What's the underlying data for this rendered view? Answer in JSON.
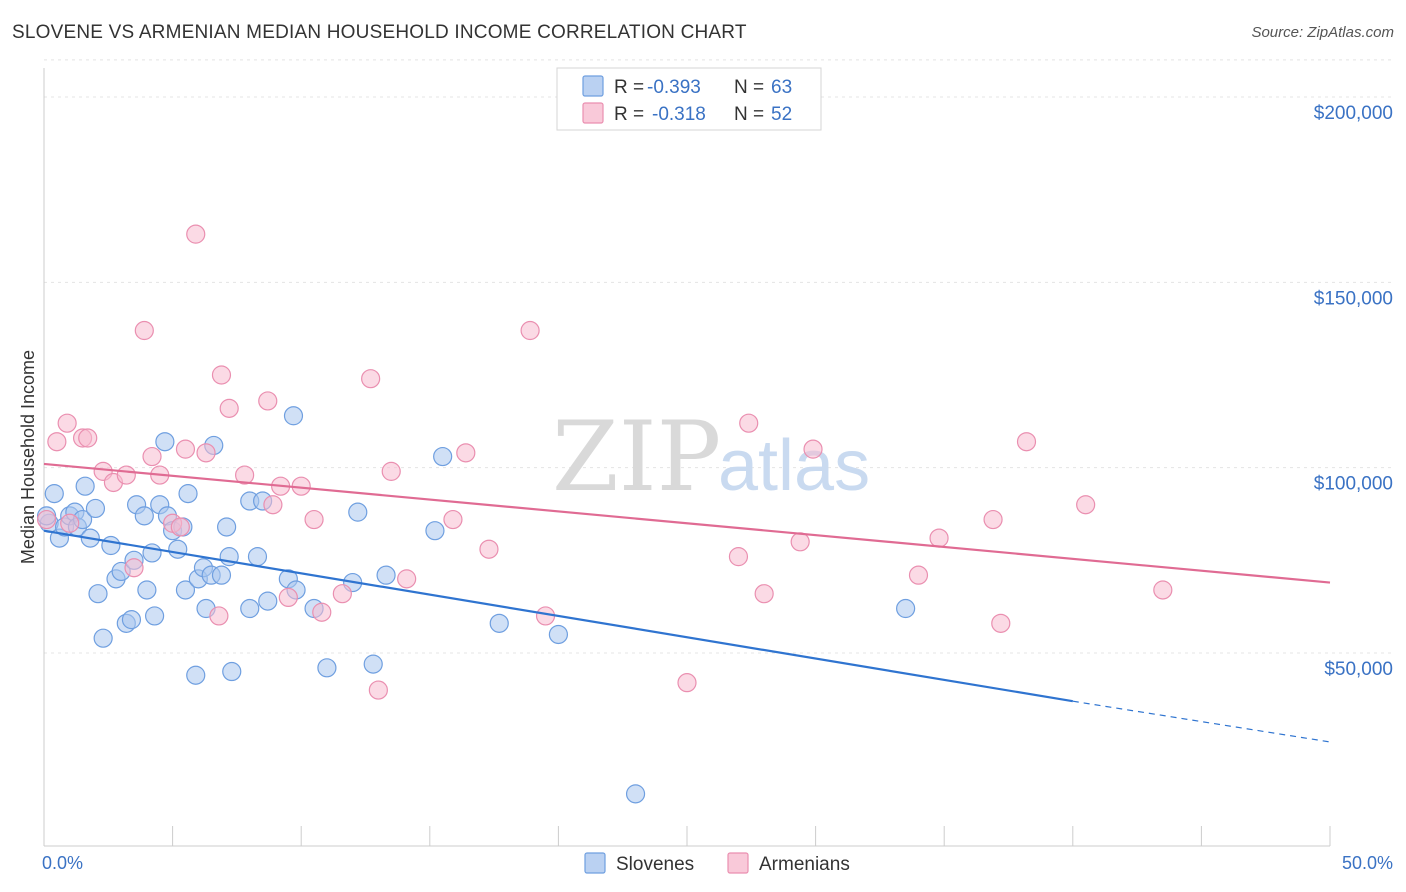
{
  "header": {
    "title": "SLOVENE VS ARMENIAN MEDIAN HOUSEHOLD INCOME CORRELATION CHART",
    "source": "Source: ZipAtlas.com"
  },
  "watermark": {
    "zip": "ZIP",
    "atlas": "atlas"
  },
  "legend": {
    "rows": [
      {
        "r_label": "R =",
        "r_value": "-0.393",
        "n_label": "N =",
        "n_value": "63",
        "color": "#a9c6ef"
      },
      {
        "r_label": "R =",
        "r_value": "-0.318",
        "n_label": "N =",
        "n_value": "52",
        "color": "#f7bcd0"
      }
    ]
  },
  "bottom_legend": [
    {
      "label": "Slovenes",
      "color": "#a9c6ef"
    },
    {
      "label": "Armenians",
      "color": "#f7bcd0"
    }
  ],
  "chart_data": {
    "type": "scatter",
    "ylabel": "Median Household Income",
    "xlim": [
      0,
      50
    ],
    "ylim": [
      0,
      210000
    ],
    "x_tick_labels": [
      "0.0%",
      "50.0%"
    ],
    "y_ticks": [
      {
        "value": 50000,
        "label": "$50,000"
      },
      {
        "value": 100000,
        "label": "$100,000"
      },
      {
        "value": 150000,
        "label": "$150,000"
      },
      {
        "value": 200000,
        "label": "$200,000"
      }
    ],
    "grid": true,
    "series": [
      {
        "name": "Slovenes",
        "color": "#a9c6ef",
        "stroke": "#6f9fe0",
        "trend_color": "#2f74d0",
        "trend": {
          "x0": 0,
          "y0": 83000,
          "x1": 40,
          "y1": 37000,
          "dash_to_x": 50,
          "dash_to_y": 26000
        },
        "points": [
          [
            0.2,
            85000
          ],
          [
            0.4,
            93000
          ],
          [
            0.6,
            81000
          ],
          [
            0.8,
            84000
          ],
          [
            1.0,
            87000
          ],
          [
            1.2,
            88000
          ],
          [
            1.3,
            84000
          ],
          [
            1.5,
            86000
          ],
          [
            1.6,
            95000
          ],
          [
            1.8,
            81000
          ],
          [
            2.0,
            89000
          ],
          [
            2.1,
            66000
          ],
          [
            2.3,
            54000
          ],
          [
            2.6,
            79000
          ],
          [
            2.8,
            70000
          ],
          [
            3.0,
            72000
          ],
          [
            3.2,
            58000
          ],
          [
            3.4,
            59000
          ],
          [
            3.5,
            75000
          ],
          [
            3.6,
            90000
          ],
          [
            3.9,
            87000
          ],
          [
            4.0,
            67000
          ],
          [
            4.2,
            77000
          ],
          [
            4.3,
            60000
          ],
          [
            4.5,
            90000
          ],
          [
            4.7,
            107000
          ],
          [
            4.8,
            87000
          ],
          [
            5.0,
            83000
          ],
          [
            5.2,
            78000
          ],
          [
            5.4,
            84000
          ],
          [
            5.5,
            67000
          ],
          [
            5.6,
            93000
          ],
          [
            5.9,
            44000
          ],
          [
            6.0,
            70000
          ],
          [
            6.2,
            73000
          ],
          [
            6.3,
            62000
          ],
          [
            6.5,
            71000
          ],
          [
            6.6,
            106000
          ],
          [
            6.9,
            71000
          ],
          [
            7.1,
            84000
          ],
          [
            7.2,
            76000
          ],
          [
            7.3,
            45000
          ],
          [
            8.0,
            91000
          ],
          [
            8.0,
            62000
          ],
          [
            8.3,
            76000
          ],
          [
            8.5,
            91000
          ],
          [
            8.7,
            64000
          ],
          [
            9.5,
            70000
          ],
          [
            9.7,
            114000
          ],
          [
            9.8,
            67000
          ],
          [
            10.5,
            62000
          ],
          [
            11.0,
            46000
          ],
          [
            12.0,
            69000
          ],
          [
            12.2,
            88000
          ],
          [
            12.8,
            47000
          ],
          [
            13.3,
            71000
          ],
          [
            15.2,
            83000
          ],
          [
            15.5,
            103000
          ],
          [
            17.7,
            58000
          ],
          [
            20.0,
            55000
          ],
          [
            23.0,
            12000
          ],
          [
            33.5,
            62000
          ],
          [
            0.1,
            87000
          ]
        ]
      },
      {
        "name": "Armenians",
        "color": "#f7bcd0",
        "stroke": "#ea8fb0",
        "trend_color": "#e06b93",
        "trend": {
          "x0": 0,
          "y0": 101000,
          "x1": 50,
          "y1": 69000
        },
        "points": [
          [
            0.1,
            86000
          ],
          [
            0.5,
            107000
          ],
          [
            0.9,
            112000
          ],
          [
            1.0,
            85000
          ],
          [
            1.5,
            108000
          ],
          [
            1.7,
            108000
          ],
          [
            2.3,
            99000
          ],
          [
            2.7,
            96000
          ],
          [
            3.2,
            98000
          ],
          [
            3.5,
            73000
          ],
          [
            3.9,
            137000
          ],
          [
            4.2,
            103000
          ],
          [
            4.5,
            98000
          ],
          [
            5.0,
            85000
          ],
          [
            5.3,
            84000
          ],
          [
            5.5,
            105000
          ],
          [
            5.9,
            163000
          ],
          [
            6.3,
            104000
          ],
          [
            6.8,
            60000
          ],
          [
            6.9,
            125000
          ],
          [
            7.2,
            116000
          ],
          [
            7.8,
            98000
          ],
          [
            8.7,
            118000
          ],
          [
            8.9,
            90000
          ],
          [
            9.2,
            95000
          ],
          [
            9.5,
            65000
          ],
          [
            10.0,
            95000
          ],
          [
            10.5,
            86000
          ],
          [
            10.8,
            61000
          ],
          [
            11.6,
            66000
          ],
          [
            12.7,
            124000
          ],
          [
            13.0,
            40000
          ],
          [
            13.5,
            99000
          ],
          [
            14.1,
            70000
          ],
          [
            15.9,
            86000
          ],
          [
            16.4,
            104000
          ],
          [
            17.3,
            78000
          ],
          [
            18.9,
            137000
          ],
          [
            19.5,
            60000
          ],
          [
            25.0,
            42000
          ],
          [
            27.0,
            76000
          ],
          [
            27.4,
            112000
          ],
          [
            28.0,
            66000
          ],
          [
            29.4,
            80000
          ],
          [
            29.9,
            105000
          ],
          [
            34.0,
            71000
          ],
          [
            34.8,
            81000
          ],
          [
            36.9,
            86000
          ],
          [
            37.2,
            58000
          ],
          [
            38.2,
            107000
          ],
          [
            40.5,
            90000
          ],
          [
            43.5,
            67000
          ]
        ]
      }
    ]
  }
}
